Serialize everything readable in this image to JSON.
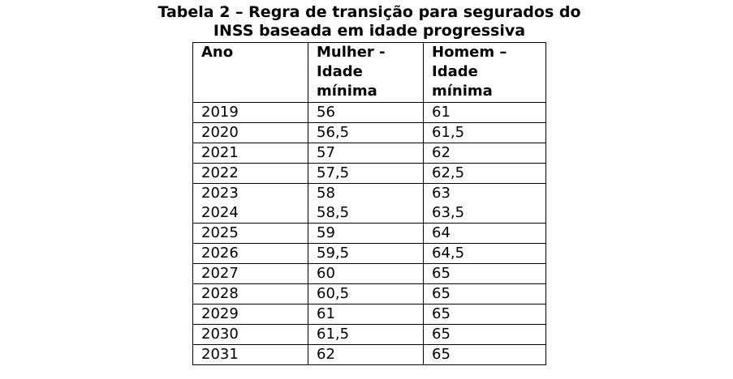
{
  "title_lines": [
    "Tabela 2 – Regra de transição para segurados do",
    "INSS baseada em idade progressiva"
  ],
  "table": {
    "header": [
      "Ano",
      "Mulher - Idade mínima",
      "Homem – Idade mínima"
    ],
    "rows": [
      [
        "2019",
        "56",
        "61"
      ],
      [
        "2020",
        "56,5",
        "61,5"
      ],
      [
        "2021",
        "57",
        "62"
      ],
      [
        "2022",
        "57,5",
        "62,5"
      ],
      [
        "2023",
        "58",
        "63"
      ],
      [
        "2024",
        "58,5",
        "63,5"
      ],
      [
        "2025",
        "59",
        "64"
      ],
      [
        "2026",
        "59,5",
        "64,5"
      ],
      [
        "2027",
        "60",
        "65"
      ],
      [
        "2028",
        "60,5",
        "65"
      ],
      [
        "2029",
        "61",
        "65"
      ],
      [
        "2030",
        "61,5",
        "65"
      ],
      [
        "2031",
        "62",
        "65"
      ]
    ]
  }
}
